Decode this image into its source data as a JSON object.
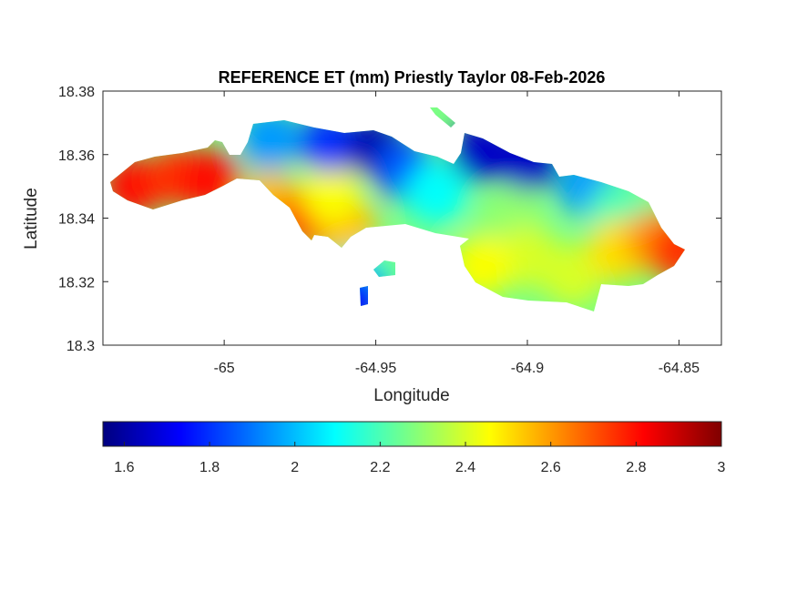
{
  "chart_data": {
    "type": "heatmap",
    "title": "REFERENCE ET (mm) Priestly Taylor 08-Feb-2026",
    "xlabel": "Longitude",
    "ylabel": "Latitude",
    "xlim": [
      -65.04,
      -64.836
    ],
    "ylim": [
      18.3,
      18.38
    ],
    "xticks": [
      -65,
      -64.95,
      -64.9,
      -64.85
    ],
    "yticks": [
      18.3,
      18.32,
      18.34,
      18.36,
      18.38
    ],
    "xtick_labels": [
      "-65",
      "-64.95",
      "-64.9",
      "-64.85"
    ],
    "ytick_labels": [
      "18.3",
      "18.32",
      "18.34",
      "18.36",
      "18.38"
    ],
    "grid": false,
    "colorbar": {
      "orientation": "horizontal",
      "placement": "bottom",
      "colormap": "jet",
      "range": [
        1.55,
        3.0
      ],
      "ticks": [
        1.6,
        1.8,
        2,
        2.2,
        2.4,
        2.6,
        2.8,
        3
      ],
      "tick_labels": [
        "1.6",
        "1.8",
        "2",
        "2.2",
        "2.4",
        "2.6",
        "2.8",
        "3"
      ]
    },
    "regions": [
      {
        "lon": -65.03,
        "lat": 18.35,
        "value": 2.8
      },
      {
        "lon": -65.015,
        "lat": 18.353,
        "value": 2.75
      },
      {
        "lon": -65.005,
        "lat": 18.352,
        "value": 2.8
      },
      {
        "lon": -64.985,
        "lat": 18.345,
        "value": 2.55
      },
      {
        "lon": -64.972,
        "lat": 18.34,
        "value": 2.75
      },
      {
        "lon": -64.96,
        "lat": 18.338,
        "value": 2.55
      },
      {
        "lon": -64.965,
        "lat": 18.348,
        "value": 2.45
      },
      {
        "lon": -64.985,
        "lat": 18.365,
        "value": 1.95
      },
      {
        "lon": -64.965,
        "lat": 18.364,
        "value": 1.8
      },
      {
        "lon": -64.95,
        "lat": 18.362,
        "value": 1.62
      },
      {
        "lon": -64.94,
        "lat": 18.355,
        "value": 1.85
      },
      {
        "lon": -64.93,
        "lat": 18.348,
        "value": 2.1
      },
      {
        "lon": -64.915,
        "lat": 18.361,
        "value": 1.65
      },
      {
        "lon": -64.9,
        "lat": 18.358,
        "value": 1.65
      },
      {
        "lon": -64.88,
        "lat": 18.35,
        "value": 1.95
      },
      {
        "lon": -64.87,
        "lat": 18.342,
        "value": 2.2
      },
      {
        "lon": -64.905,
        "lat": 18.34,
        "value": 2.3
      },
      {
        "lon": -64.9,
        "lat": 18.328,
        "value": 2.4
      },
      {
        "lon": -64.915,
        "lat": 18.325,
        "value": 2.45
      },
      {
        "lon": -64.885,
        "lat": 18.322,
        "value": 2.4
      },
      {
        "lon": -64.87,
        "lat": 18.33,
        "value": 2.5
      },
      {
        "lon": -64.858,
        "lat": 18.333,
        "value": 2.6
      },
      {
        "lon": -64.85,
        "lat": 18.33,
        "value": 2.75
      },
      {
        "lon": -64.955,
        "lat": 18.321,
        "value": 2.15
      },
      {
        "lon": -64.957,
        "lat": 18.315,
        "value": 1.75
      }
    ]
  }
}
